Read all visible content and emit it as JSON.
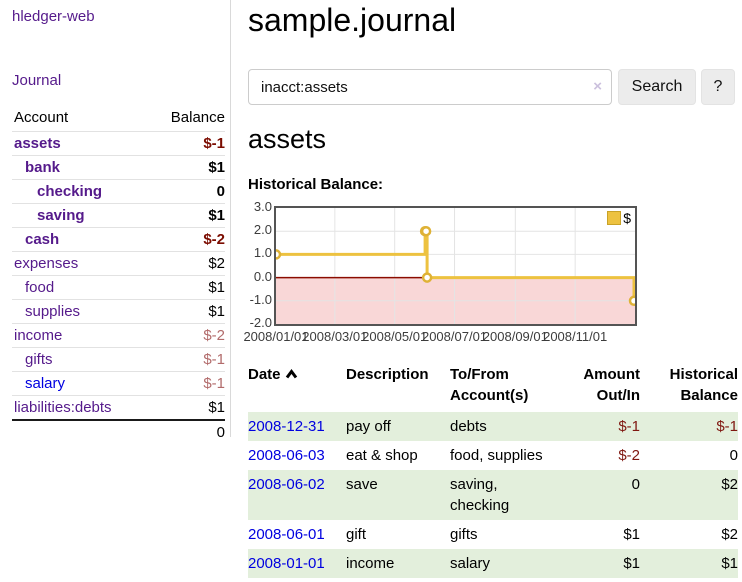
{
  "brand": "hledger-web",
  "nav": {
    "journal": "Journal"
  },
  "sidebar": {
    "account_header": "Account",
    "balance_header": "Balance",
    "rows": [
      {
        "account": "assets",
        "balance": "$-1",
        "level": 1,
        "active": true,
        "balance_class": "neg-strong"
      },
      {
        "account": "bank",
        "balance": "$1",
        "level": 2,
        "active": true,
        "balance_class": "pos"
      },
      {
        "account": "checking",
        "balance": "0",
        "level": 3,
        "active": true,
        "balance_class": "pos"
      },
      {
        "account": "saving",
        "balance": "$1",
        "level": 3,
        "active": true,
        "balance_class": "pos"
      },
      {
        "account": "cash",
        "balance": "$-2",
        "level": 2,
        "active": true,
        "balance_class": "neg-strong"
      },
      {
        "account": "expenses",
        "balance": "$2",
        "level": 1,
        "active": false,
        "balance_class": "pos"
      },
      {
        "account": "food",
        "balance": "$1",
        "level": 2,
        "active": false,
        "balance_class": "pos"
      },
      {
        "account": "supplies",
        "balance": "$1",
        "level": 2,
        "active": false,
        "balance_class": "pos"
      },
      {
        "account": "income",
        "balance": "$-2",
        "level": 1,
        "active": false,
        "balance_class": "neg-soft"
      },
      {
        "account": "gifts",
        "balance": "$-1",
        "level": 2,
        "active": false,
        "balance_class": "neg-soft"
      },
      {
        "account": "salary",
        "balance": "$-1",
        "level": 2,
        "active": false,
        "balance_class": "neg-soft",
        "link_class": "blue"
      },
      {
        "account": "liabilities:debts",
        "balance": "$1",
        "level": 1,
        "active": false,
        "balance_class": "pos"
      }
    ],
    "total": "0"
  },
  "main": {
    "title": "sample.journal",
    "search": {
      "value": "inacct:assets",
      "clear_icon": "×",
      "search_label": "Search",
      "help_label": "?"
    },
    "account_heading": "assets",
    "chart_title": "Historical Balance:"
  },
  "chart_data": {
    "type": "line",
    "step": true,
    "title": "Historical Balance",
    "series": [
      {
        "name": "$",
        "points": [
          [
            "2008-01-01",
            1
          ],
          [
            "2008-06-01",
            2
          ],
          [
            "2008-06-02",
            2
          ],
          [
            "2008-06-03",
            0
          ],
          [
            "2008-12-31",
            -1
          ]
        ]
      }
    ],
    "x_range": [
      "2008-01-01",
      "2009-01-01"
    ],
    "x_ticks": [
      {
        "date": "2008-01-01",
        "label": "2008/01/01"
      },
      {
        "date": "2008-03-01",
        "label": "2008/03/01"
      },
      {
        "date": "2008-05-01",
        "label": "2008/05/01"
      },
      {
        "date": "2008-07-01",
        "label": "2008/07/01"
      },
      {
        "date": "2008-09-01",
        "label": "2008/09/01"
      },
      {
        "date": "2008-11-01",
        "label": "2008/11/01"
      }
    ],
    "y_range": [
      -2,
      3
    ],
    "y_ticks": [
      3.0,
      2.0,
      1.0,
      0.0,
      -1.0,
      -2.0
    ],
    "legend": {
      "label": "$",
      "position": "top-right"
    },
    "grid": true,
    "colors": {
      "line": "#edc240",
      "marker_fill": "#ffffff",
      "marker_stroke": "#dfb236",
      "negative_region": "#f9d7d7",
      "zero_line": "#8b0c00",
      "gridline": "#e4e4e4",
      "border": "#545454"
    }
  },
  "register": {
    "headers": {
      "date": "Date",
      "description": "Description",
      "accounts": "To/From Account(s)",
      "amount": "Amount Out/In",
      "balance": "Historical Balance"
    },
    "rows": [
      {
        "date": "2008-12-31",
        "description": "pay off",
        "accounts": "debts",
        "amount": "$-1",
        "amount_negative": true,
        "balance": "$-1",
        "balance_negative": true,
        "highlight": true
      },
      {
        "date": "2008-06-03",
        "description": "eat & shop",
        "accounts": "food, supplies",
        "amount": "$-2",
        "amount_negative": true,
        "balance": "0",
        "balance_negative": false,
        "highlight": false
      },
      {
        "date": "2008-06-02",
        "description": "save",
        "accounts": "saving,\nchecking",
        "amount": "0",
        "amount_negative": false,
        "balance": "$2",
        "balance_negative": false,
        "highlight": true
      },
      {
        "date": "2008-06-01",
        "description": "gift",
        "accounts": "gifts",
        "amount": "$1",
        "amount_negative": false,
        "balance": "$2",
        "balance_negative": false,
        "highlight": false
      },
      {
        "date": "2008-01-01",
        "description": "income",
        "accounts": "salary",
        "amount": "$1",
        "amount_negative": false,
        "balance": "$1",
        "balance_negative": false,
        "highlight": true
      }
    ]
  }
}
